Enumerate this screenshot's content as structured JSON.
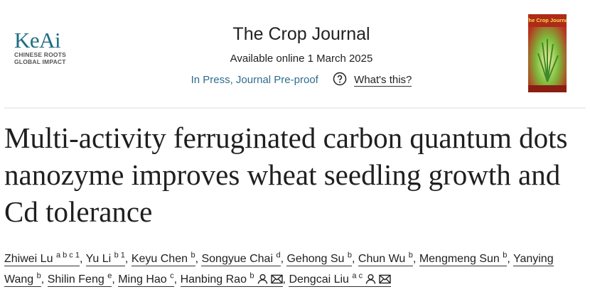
{
  "header": {
    "logo": {
      "name": "KeAi",
      "tagline": [
        "CHINESE ROOTS",
        "GLOBAL IMPACT"
      ]
    },
    "journal": "The Crop Journal",
    "availability": "Available online 1 March 2025",
    "status": "In Press, Journal Pre-proof",
    "help_link": "What's this?",
    "cover": {
      "title": "The Crop Journal"
    }
  },
  "article": {
    "title": "Multi-activity ferruginated carbon quantum dots nanozyme improves wheat seedling growth and Cd tolerance",
    "separator": ",",
    "authors": [
      {
        "name": "Zhiwei Lu",
        "sup": "a b c 1"
      },
      {
        "name": "Yu Li",
        "sup": "b 1"
      },
      {
        "name": "Keyu Chen",
        "sup": "b"
      },
      {
        "name": "Songyue Chai",
        "sup": "d"
      },
      {
        "name": "Gehong Su",
        "sup": "b"
      },
      {
        "name": "Chun Wu",
        "sup": "b"
      },
      {
        "name": "Mengmeng Sun",
        "sup": "b"
      },
      {
        "name": "Yanying Wang",
        "sup": "b"
      },
      {
        "name": "Shilin Feng",
        "sup": "e"
      },
      {
        "name": "Ming Hao",
        "sup": "c"
      },
      {
        "name": "Hanbing Rao",
        "sup": "b",
        "icons": [
          "person",
          "mail"
        ]
      },
      {
        "name": "Dengcai Liu",
        "sup": "a c",
        "icons": [
          "person",
          "mail"
        ]
      }
    ]
  }
}
